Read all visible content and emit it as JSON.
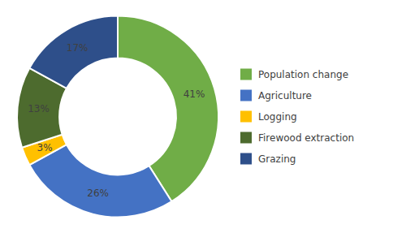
{
  "chart_data": {
    "type": "donut",
    "categories": [
      "Population change",
      "Agriculture",
      "Logging",
      "Firewood extraction",
      "Grazing"
    ],
    "values": [
      41,
      26,
      3,
      13,
      17
    ],
    "value_labels": [
      "41%",
      "26%",
      "3%",
      "13%",
      "17%"
    ],
    "colors": [
      "#70ad47",
      "#4472c4",
      "#ffc000",
      "#4d6b2e",
      "#2e4f8a"
    ],
    "data_labels": true,
    "legend": "right"
  }
}
